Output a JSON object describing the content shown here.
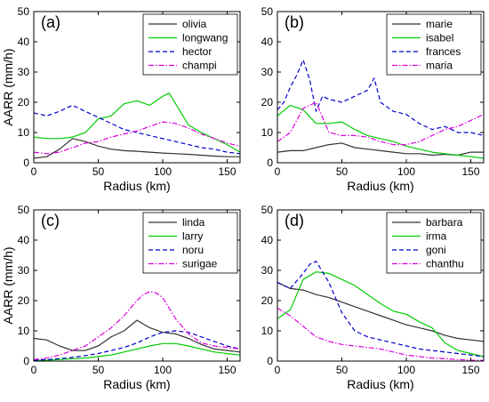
{
  "chart_data": [
    {
      "type": "line",
      "panel_label": "(a)",
      "xlabel": "Radius (km)",
      "ylabel": "AARR (mm/h)",
      "xlim": [
        0,
        160
      ],
      "ylim": [
        0,
        50
      ],
      "xticks": [
        0,
        50,
        100,
        150
      ],
      "yticks": [
        0,
        10,
        20,
        30,
        40,
        50
      ],
      "legend_position": "top-right",
      "series": [
        {
          "name": "olivia",
          "color": "#333333",
          "dash": "solid",
          "x": [
            0,
            10,
            20,
            30,
            40,
            50,
            60,
            70,
            80,
            90,
            100,
            110,
            120,
            130,
            140,
            150,
            160
          ],
          "y": [
            1.5,
            2.0,
            4.5,
            8.0,
            7.0,
            5.5,
            4.5,
            4.0,
            3.8,
            3.5,
            3.2,
            3.0,
            2.8,
            2.5,
            2.2,
            2.0,
            2.0
          ]
        },
        {
          "name": "longwang",
          "color": "#00cc00",
          "dash": "solid",
          "x": [
            0,
            10,
            20,
            30,
            40,
            50,
            60,
            70,
            80,
            90,
            100,
            105,
            110,
            120,
            130,
            140,
            150,
            160
          ],
          "y": [
            8.5,
            8.0,
            8.0,
            8.5,
            10.0,
            14.5,
            15.5,
            19.5,
            20.5,
            19.0,
            22.0,
            23.0,
            19.5,
            12.5,
            10.0,
            8.0,
            6.0,
            3.5
          ]
        },
        {
          "name": "hector",
          "color": "#0000cc",
          "dash": "dashed",
          "x": [
            0,
            10,
            20,
            30,
            40,
            50,
            60,
            70,
            80,
            90,
            100,
            110,
            120,
            130,
            140,
            150,
            160
          ],
          "y": [
            16.5,
            15.5,
            17.0,
            19.0,
            17.0,
            15.0,
            13.0,
            11.0,
            10.0,
            9.0,
            8.0,
            7.0,
            6.0,
            5.0,
            4.5,
            3.5,
            3.0
          ]
        },
        {
          "name": "champi",
          "color": "#dd00dd",
          "dash": "dashdot",
          "x": [
            0,
            10,
            20,
            30,
            40,
            50,
            60,
            70,
            80,
            90,
            100,
            110,
            120,
            130,
            140,
            150,
            160
          ],
          "y": [
            3.5,
            3.0,
            3.5,
            5.0,
            6.5,
            7.0,
            8.5,
            9.5,
            10.5,
            12.0,
            13.5,
            13.0,
            11.5,
            9.5,
            8.0,
            6.5,
            5.5
          ]
        }
      ]
    },
    {
      "type": "line",
      "panel_label": "(b)",
      "xlabel": "Radius (km)",
      "ylabel": "",
      "xlim": [
        0,
        160
      ],
      "ylim": [
        0,
        50
      ],
      "xticks": [
        0,
        50,
        100,
        150
      ],
      "yticks": [
        0,
        10,
        20,
        30,
        40,
        50
      ],
      "legend_position": "top-right",
      "series": [
        {
          "name": "marie",
          "color": "#333333",
          "dash": "solid",
          "x": [
            0,
            10,
            20,
            30,
            40,
            50,
            60,
            70,
            80,
            90,
            100,
            110,
            120,
            130,
            140,
            150,
            160
          ],
          "y": [
            3.5,
            4.0,
            4.0,
            5.0,
            6.0,
            6.5,
            5.0,
            4.5,
            4.0,
            3.5,
            3.0,
            3.0,
            2.5,
            2.8,
            2.5,
            3.5,
            3.5
          ]
        },
        {
          "name": "isabel",
          "color": "#00cc00",
          "dash": "solid",
          "x": [
            0,
            10,
            20,
            30,
            40,
            50,
            60,
            70,
            80,
            90,
            100,
            110,
            120,
            130,
            140,
            150,
            160
          ],
          "y": [
            15.5,
            19.0,
            17.5,
            13.0,
            13.0,
            13.5,
            11.0,
            9.0,
            8.0,
            7.0,
            5.5,
            4.5,
            3.5,
            3.0,
            2.5,
            2.0,
            1.5
          ]
        },
        {
          "name": "frances",
          "color": "#0000cc",
          "dash": "dashed",
          "x": [
            0,
            5,
            10,
            15,
            20,
            25,
            30,
            35,
            40,
            50,
            60,
            70,
            75,
            80,
            90,
            100,
            110,
            120,
            130,
            140,
            150,
            160
          ],
          "y": [
            17.5,
            20.0,
            25.0,
            29.0,
            34.0,
            27.5,
            17.0,
            22.0,
            21.0,
            20.0,
            22.0,
            24.0,
            28.0,
            20.0,
            17.0,
            16.0,
            13.0,
            11.0,
            12.0,
            10.0,
            10.0,
            9.0
          ]
        },
        {
          "name": "maria",
          "color": "#dd00dd",
          "dash": "dashdot",
          "x": [
            0,
            10,
            20,
            30,
            40,
            50,
            60,
            70,
            80,
            90,
            100,
            110,
            120,
            130,
            140,
            150,
            160
          ],
          "y": [
            7.0,
            10.0,
            18.0,
            20.0,
            10.0,
            9.0,
            9.0,
            8.5,
            7.0,
            6.0,
            6.0,
            7.0,
            9.0,
            11.0,
            12.0,
            14.0,
            16.0
          ]
        }
      ]
    },
    {
      "type": "line",
      "panel_label": "(c)",
      "xlabel": "Radius (km)",
      "ylabel": "AARR (mm/h)",
      "xlim": [
        0,
        160
      ],
      "ylim": [
        0,
        50
      ],
      "xticks": [
        0,
        50,
        100,
        150
      ],
      "yticks": [
        0,
        10,
        20,
        30,
        40,
        50
      ],
      "legend_position": "top-right",
      "series": [
        {
          "name": "linda",
          "color": "#333333",
          "dash": "solid",
          "x": [
            0,
            10,
            20,
            30,
            40,
            50,
            60,
            70,
            80,
            90,
            100,
            110,
            120,
            130,
            140,
            150,
            160
          ],
          "y": [
            7.5,
            7.0,
            5.0,
            3.5,
            3.5,
            5.0,
            8.0,
            10.0,
            13.5,
            11.0,
            9.5,
            9.0,
            7.5,
            5.5,
            4.0,
            3.5,
            3.0
          ]
        },
        {
          "name": "larry",
          "color": "#00cc00",
          "dash": "solid",
          "x": [
            0,
            10,
            20,
            30,
            40,
            50,
            60,
            70,
            80,
            90,
            100,
            110,
            120,
            130,
            140,
            150,
            160
          ],
          "y": [
            0.2,
            0.3,
            0.5,
            0.8,
            1.0,
            1.5,
            2.0,
            3.0,
            4.0,
            5.0,
            5.8,
            5.8,
            5.0,
            4.0,
            3.0,
            2.5,
            2.0
          ]
        },
        {
          "name": "noru",
          "color": "#0000cc",
          "dash": "dashed",
          "x": [
            0,
            10,
            20,
            30,
            40,
            50,
            60,
            70,
            80,
            90,
            100,
            110,
            120,
            130,
            140,
            150,
            160
          ],
          "y": [
            0.3,
            0.5,
            0.8,
            1.2,
            1.8,
            2.5,
            3.5,
            4.5,
            6.0,
            8.0,
            9.5,
            10.0,
            9.5,
            8.0,
            6.5,
            5.0,
            4.0
          ]
        },
        {
          "name": "surigae",
          "color": "#dd00dd",
          "dash": "dashdot",
          "x": [
            0,
            10,
            20,
            30,
            40,
            50,
            60,
            70,
            80,
            85,
            90,
            95,
            100,
            110,
            120,
            130,
            140,
            150,
            160
          ],
          "y": [
            0.5,
            1.0,
            2.0,
            3.5,
            5.0,
            8.0,
            11.0,
            15.0,
            20.0,
            22.0,
            23.0,
            22.5,
            21.0,
            14.0,
            9.0,
            6.0,
            5.0,
            4.5,
            4.0
          ]
        }
      ]
    },
    {
      "type": "line",
      "panel_label": "(d)",
      "xlabel": "Radius (km)",
      "ylabel": "",
      "xlim": [
        0,
        160
      ],
      "ylim": [
        0,
        50
      ],
      "xticks": [
        0,
        50,
        100,
        150
      ],
      "yticks": [
        0,
        10,
        20,
        30,
        40,
        50
      ],
      "legend_position": "top-right",
      "series": [
        {
          "name": "barbara",
          "color": "#333333",
          "dash": "solid",
          "x": [
            0,
            10,
            20,
            30,
            40,
            50,
            60,
            70,
            80,
            90,
            100,
            110,
            120,
            130,
            140,
            150,
            160
          ],
          "y": [
            26.0,
            24.0,
            23.5,
            22.0,
            21.0,
            19.5,
            18.0,
            16.5,
            15.0,
            13.5,
            12.0,
            11.0,
            10.0,
            8.5,
            7.5,
            7.0,
            6.5
          ]
        },
        {
          "name": "irma",
          "color": "#00cc00",
          "dash": "solid",
          "x": [
            0,
            10,
            20,
            30,
            40,
            50,
            60,
            70,
            80,
            90,
            100,
            110,
            120,
            130,
            140,
            150,
            160
          ],
          "y": [
            14.0,
            17.0,
            27.0,
            29.5,
            29.0,
            27.0,
            25.0,
            22.0,
            19.0,
            16.5,
            15.5,
            13.0,
            11.0,
            6.0,
            3.5,
            2.5,
            1.5
          ]
        },
        {
          "name": "goni",
          "color": "#0000cc",
          "dash": "dashed",
          "x": [
            0,
            10,
            20,
            25,
            30,
            40,
            50,
            60,
            70,
            80,
            90,
            100,
            110,
            120,
            130,
            140,
            150,
            160
          ],
          "y": [
            26.0,
            24.0,
            29.0,
            32.0,
            33.0,
            26.0,
            16.0,
            10.0,
            8.0,
            7.0,
            6.0,
            5.0,
            4.0,
            3.5,
            3.0,
            2.5,
            2.0,
            1.5
          ]
        },
        {
          "name": "chanthu",
          "color": "#dd00dd",
          "dash": "dashdot",
          "x": [
            0,
            10,
            20,
            30,
            40,
            50,
            60,
            70,
            80,
            90,
            100,
            110,
            120,
            130,
            140,
            150,
            160
          ],
          "y": [
            17.5,
            15.0,
            11.5,
            8.0,
            6.5,
            5.5,
            5.0,
            4.5,
            4.0,
            3.0,
            2.0,
            1.5,
            1.0,
            0.8,
            0.5,
            0.3,
            0.2
          ]
        }
      ]
    }
  ]
}
